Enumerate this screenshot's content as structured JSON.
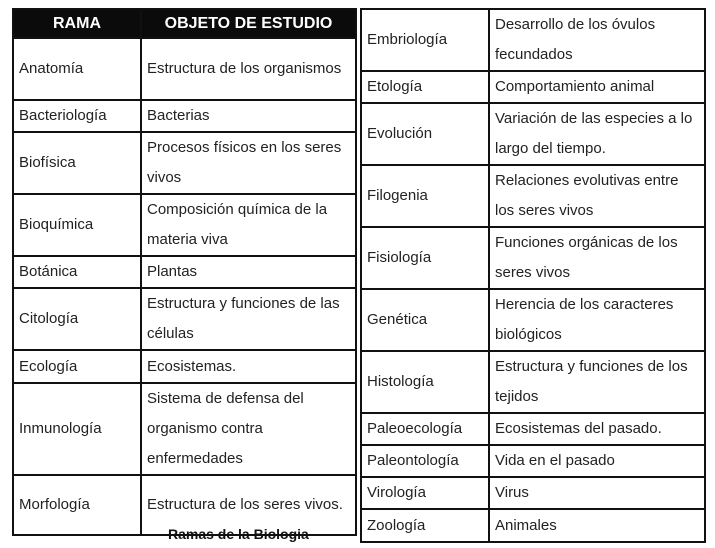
{
  "left_table": {
    "headers": [
      "RAMA",
      "OBJETO DE ESTUDIO"
    ],
    "rows": [
      {
        "rama": "Anatomía",
        "objeto": "Estructura de los organismos"
      },
      {
        "rama": "Bacteriología",
        "objeto": "Bacterias"
      },
      {
        "rama": "Biofísica",
        "objeto": "Procesos físicos en los seres vivos"
      },
      {
        "rama": "Bioquímica",
        "objeto": "Composición química de la materia viva"
      },
      {
        "rama": "Botánica",
        "objeto": "Plantas"
      },
      {
        "rama": "Citología",
        "objeto": "Estructura y funciones de las células"
      },
      {
        "rama": "Ecología",
        "objeto": "Ecosistemas."
      },
      {
        "rama": "Inmunología",
        "objeto": "Sistema de defensa del organismo contra enfermedades"
      },
      {
        "rama": "Morfología",
        "objeto": "Estructura de los seres vivos."
      }
    ]
  },
  "right_table": {
    "rows": [
      {
        "rama": "Embriología",
        "objeto": "Desarrollo de los óvulos fecundados"
      },
      {
        "rama": "Etología",
        "objeto": "Comportamiento animal"
      },
      {
        "rama": "Evolución",
        "objeto": "Variación de las especies a lo largo del tiempo."
      },
      {
        "rama": "Filogenia",
        "objeto": "Relaciones evolutivas entre los seres vivos"
      },
      {
        "rama": "Fisiología",
        "objeto": "Funciones orgánicas de los seres vivos"
      },
      {
        "rama": "Genética",
        "objeto": "Herencia de los caracteres biológicos"
      },
      {
        "rama": "Histología",
        "objeto": "Estructura y funciones de los tejidos"
      },
      {
        "rama": "Paleoecología",
        "objeto": "Ecosistemas del pasado."
      },
      {
        "rama": "Paleontología",
        "objeto": "Vida en el pasado"
      },
      {
        "rama": "Virología",
        "objeto": "Virus"
      },
      {
        "rama": "Zoología",
        "objeto": "Animales"
      }
    ]
  },
  "caption": "Ramas de la Biologia"
}
